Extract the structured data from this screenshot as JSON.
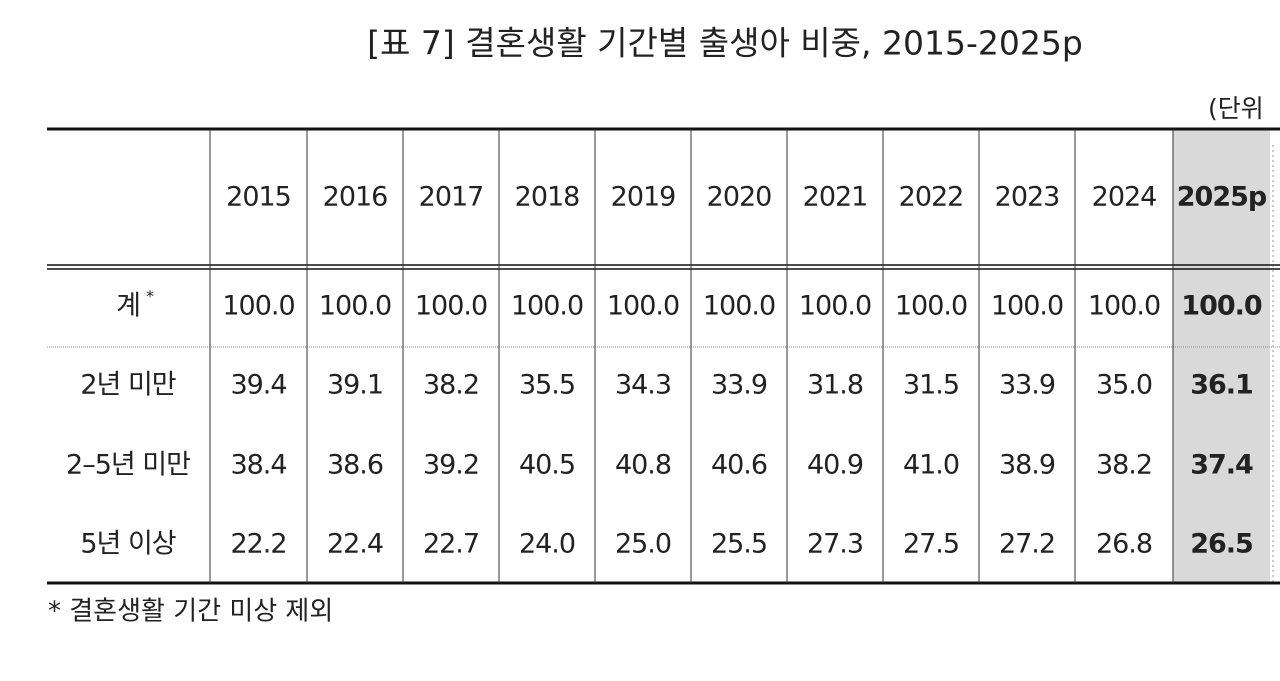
{
  "title": "[표 7] 결혼생활 기간별 출생아 비중, 2015-2025p",
  "unit": "(단위",
  "table": {
    "header": [
      "2015",
      "2016",
      "2017",
      "2018",
      "2019",
      "2020",
      "2021",
      "2022",
      "2023",
      "2024",
      "2025p"
    ],
    "rows": [
      {
        "label": "계",
        "label_mark": "*",
        "cells": [
          "100.0",
          "100.0",
          "100.0",
          "100.0",
          "100.0",
          "100.0",
          "100.0",
          "100.0",
          "100.0",
          "100.0",
          "100.0"
        ]
      },
      {
        "label": "2년 미만",
        "cells": [
          "39.4",
          "39.1",
          "38.2",
          "35.5",
          "34.3",
          "33.9",
          "31.8",
          "31.5",
          "33.9",
          "35.0",
          "36.1"
        ]
      },
      {
        "label": "2–5년 미만",
        "cells": [
          "38.4",
          "38.6",
          "39.2",
          "40.5",
          "40.8",
          "40.6",
          "40.9",
          "41.0",
          "38.9",
          "38.2",
          "37.4"
        ]
      },
      {
        "label": "5년 이상",
        "cells": [
          "22.2",
          "22.4",
          "22.7",
          "24.0",
          "25.0",
          "25.5",
          "27.3",
          "27.5",
          "27.2",
          "26.8",
          "26.5"
        ]
      }
    ]
  },
  "footnote": "* 결혼생활 기간 미상 제외"
}
